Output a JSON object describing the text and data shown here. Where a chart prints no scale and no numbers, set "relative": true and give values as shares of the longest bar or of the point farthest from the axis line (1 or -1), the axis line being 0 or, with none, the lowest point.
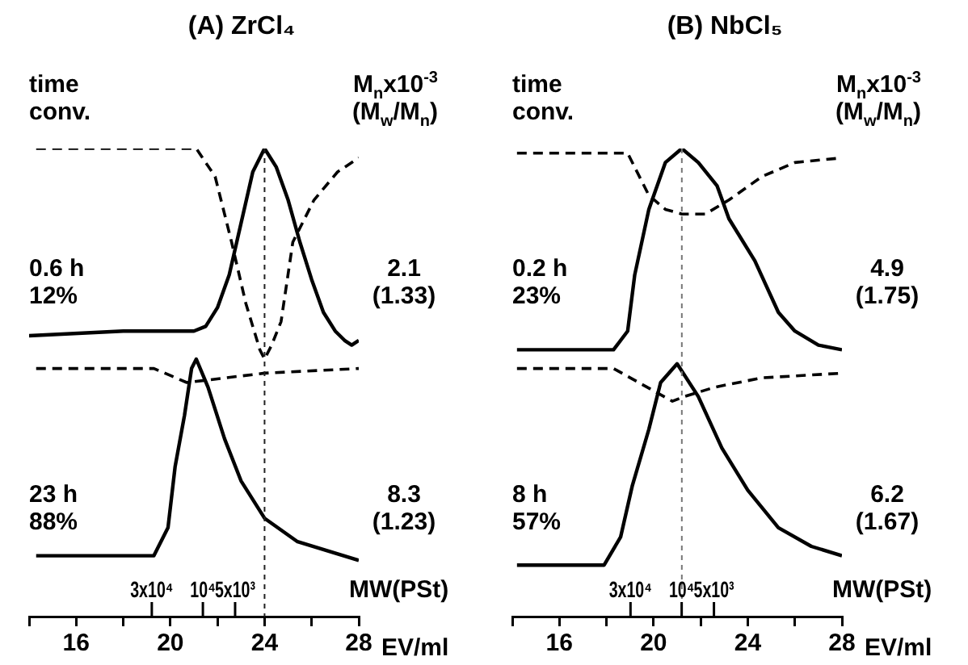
{
  "chart_data": [
    {
      "type": "line",
      "title": "(A) ZrCl₄",
      "relative": true,
      "xlabel": "EV/ml",
      "xlim": [
        14,
        28
      ],
      "xticks": [
        {
          "value": 14,
          "label": null
        },
        16,
        {
          "value": 18,
          "label": null
        },
        20,
        {
          "value": 22,
          "label": null
        },
        24,
        {
          "value": 26,
          "label": null
        },
        28
      ],
      "x2label": "MW(PSt)",
      "log": "x2",
      "x2lim": [
        420000,
        350
      ],
      "x2ticks": [
        {
          "value": 30000,
          "label": "3x10⁴"
        },
        {
          "value": 10000,
          "label": "10⁴"
        },
        {
          "value": 5000,
          "label": "5x10³"
        }
      ],
      "marker": "none",
      "legend": false,
      "grid": false,
      "ref_lines": [
        {
          "axis": "x",
          "value": 24,
          "color": "#222222",
          "line_style": "dashed"
        }
      ],
      "annotations": [
        "time\nconv.",
        "M$_{n}$x10$^{-3}$\n(M$_{w}$/M$_{n}$)",
        "0.6 h\n12%",
        "2.1\n(1.33)",
        "23 h\n88%",
        "8.3\n(1.23)"
      ],
      "series": [
        {
          "color": "#000000",
          "line_style": "dashed",
          "x": [
            14.3,
            21.1,
            21.9,
            22.6,
            23.2,
            23.5,
            23.8,
            24.0,
            24.3,
            24.7,
            25.2,
            26.1,
            27.1,
            28
          ],
          "values": [
            1.0,
            1.0,
            0.94,
            0.8,
            0.67,
            0.62,
            0.57,
            0.55,
            0.58,
            0.63,
            0.8,
            0.89,
            0.95,
            0.98
          ]
        },
        {
          "color": "#000000",
          "line_style": "solid",
          "x": [
            14,
            18,
            21,
            21.5,
            22,
            22.5,
            23,
            23.5,
            24,
            24.5,
            25,
            25.5,
            26,
            26.5,
            27,
            27.4,
            27.7,
            28
          ],
          "values": [
            0.6,
            0.61,
            0.61,
            0.62,
            0.66,
            0.73,
            0.84,
            0.95,
            1.0,
            0.96,
            0.89,
            0.8,
            0.72,
            0.65,
            0.61,
            0.59,
            0.58,
            0.59
          ]
        },
        {
          "color": "#000000",
          "line_style": "dashed",
          "x": [
            14.3,
            19.3,
            20.7,
            24.0,
            28
          ],
          "values": [
            0.53,
            0.53,
            0.5,
            0.52,
            0.53
          ]
        },
        {
          "color": "#000000",
          "line_style": "solid",
          "x": [
            14.3,
            19.3,
            19.9,
            20.2,
            20.6,
            20.9,
            21.1,
            21.6,
            22.3,
            23.0,
            24.0,
            25.4,
            28
          ],
          "values": [
            0.13,
            0.13,
            0.19,
            0.32,
            0.43,
            0.53,
            0.55,
            0.49,
            0.38,
            0.29,
            0.21,
            0.16,
            0.12
          ]
        }
      ]
    },
    {
      "type": "line",
      "title": "(B) NbCl₅",
      "relative": true,
      "xlabel": "EV/ml",
      "xlim": [
        14,
        28
      ],
      "xticks": [
        {
          "value": 14,
          "label": null
        },
        16,
        {
          "value": 18,
          "label": null
        },
        20,
        {
          "value": 22,
          "label": null
        },
        24,
        {
          "value": 26,
          "label": null
        },
        28
      ],
      "x2label": "MW(PSt)",
      "log": "x2",
      "x2lim": [
        380000,
        320
      ],
      "x2ticks": [
        {
          "value": 30000,
          "label": "3x10⁴"
        },
        {
          "value": 10000,
          "label": "10⁴"
        },
        {
          "value": 5000,
          "label": "5x10³"
        }
      ],
      "marker": "none",
      "legend": false,
      "grid": false,
      "ref_lines": [
        {
          "axis": "x",
          "value": 21.2,
          "color": "#777777",
          "line_style": "dashed"
        }
      ],
      "annotations": [
        "time\nconv.",
        "M$_{n}$x10$^{-3}$\n(M$_{w}$/M$_{n}$)",
        "0.2 h\n23%",
        "4.9\n(1.75)",
        "8 h\n57%",
        "6.2\n(1.67)"
      ],
      "series": [
        {
          "color": "#000000",
          "line_style": "dashed",
          "x": [
            14.2,
            18.9,
            19.8,
            20.5,
            21.2,
            22.2,
            23.2,
            24.6,
            26.0,
            28
          ],
          "values": [
            0.99,
            0.99,
            0.9,
            0.87,
            0.86,
            0.86,
            0.89,
            0.94,
            0.97,
            0.98
          ]
        },
        {
          "color": "#000000",
          "line_style": "solid",
          "x": [
            14.2,
            18.3,
            18.9,
            19.2,
            19.8,
            20.5,
            21.2,
            21.9,
            22.7,
            23.2,
            24.3,
            25.3,
            26.0,
            27.0,
            28
          ],
          "values": [
            0.57,
            0.57,
            0.61,
            0.73,
            0.87,
            0.97,
            1.0,
            0.97,
            0.92,
            0.85,
            0.76,
            0.65,
            0.61,
            0.58,
            0.57
          ]
        },
        {
          "color": "#000000",
          "line_style": "dashed",
          "x": [
            14.2,
            18.3,
            20.8,
            21.3,
            22.6,
            24.6,
            28
          ],
          "values": [
            0.53,
            0.53,
            0.46,
            0.47,
            0.49,
            0.51,
            0.52
          ]
        },
        {
          "color": "#000000",
          "line_style": "solid",
          "x": [
            14.2,
            17.9,
            18.6,
            19.1,
            19.8,
            20.3,
            21.0,
            21.9,
            22.9,
            24.0,
            25.3,
            26.7,
            28
          ],
          "values": [
            0.11,
            0.11,
            0.17,
            0.28,
            0.4,
            0.5,
            0.54,
            0.47,
            0.36,
            0.27,
            0.19,
            0.15,
            0.13
          ]
        }
      ]
    }
  ]
}
